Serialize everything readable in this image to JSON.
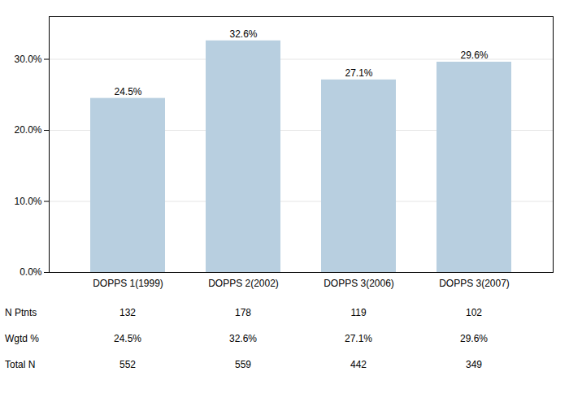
{
  "chart_data": {
    "type": "bar",
    "categories": [
      "DOPPS 1(1999)",
      "DOPPS 2(2002)",
      "DOPPS 3(2006)",
      "DOPPS 3(2007)"
    ],
    "values": [
      24.5,
      32.6,
      27.1,
      29.6
    ],
    "value_labels": [
      "24.5%",
      "32.6%",
      "27.1%",
      "29.6%"
    ],
    "data_labels": true,
    "color": "#b8cfe0",
    "ylim": [
      0,
      36
    ],
    "yticks": [
      {
        "value": 0,
        "label": "0.0%"
      },
      {
        "value": 10,
        "label": "10.0%"
      },
      {
        "value": 20,
        "label": "20.0%"
      },
      {
        "value": 30,
        "label": "30.0%"
      }
    ],
    "grid": true,
    "table": {
      "row_labels": [
        "N Ptnts",
        "Wgtd %",
        "Total N"
      ],
      "rows": [
        [
          "132",
          "178",
          "119",
          "102"
        ],
        [
          "24.5%",
          "32.6%",
          "27.1%",
          "29.6%"
        ],
        [
          "552",
          "559",
          "442",
          "349"
        ]
      ]
    }
  }
}
